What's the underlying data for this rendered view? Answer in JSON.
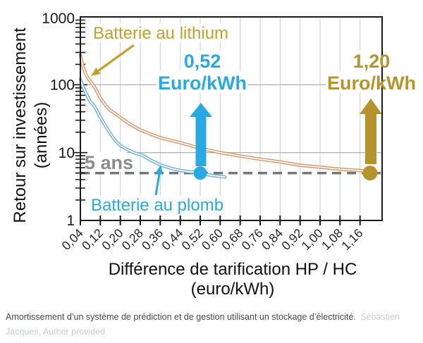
{
  "figure": {
    "y_axis": {
      "title": "Retour sur investissement",
      "unit": "(années)",
      "ticks": [
        "1000",
        "100",
        "10",
        "1"
      ]
    },
    "x_axis": {
      "title": "Différence de tarification HP / HC",
      "unit": "(euro/kWh)",
      "ticks": [
        "0,04",
        "0,12",
        "0,20",
        "0,28",
        "0,36",
        "0,44",
        "0,52",
        "0,60",
        "0,68",
        "0,76",
        "0,84",
        "0,92",
        "1,00",
        "1,08",
        "1,16"
      ]
    },
    "annotations": {
      "lithium_label": "Batterie au lithium",
      "plomb_label": "Batterie au plomb",
      "five_years": "5 ans",
      "blue_value": "0,52",
      "blue_unit": "Euro/kWh",
      "gold_value": "1,20",
      "gold_unit": "Euro/kWh"
    },
    "colors": {
      "blue": "#29A9E1",
      "gold": "#B6932C",
      "goldlight": "#C2A02F",
      "tan": "#D6986B",
      "plomb": "#6FB1D8",
      "graylabel": "#8C8C8C"
    }
  },
  "caption": {
    "text": "Amortissement d’un système de prédiction et de gestion utilisant un stockage d’électricité.",
    "credit": "Sébastien Jacques, Author provided"
  },
  "chart_data": {
    "type": "line",
    "xlabel": "Différence de tarification HP / HC (euro/kWh)",
    "ylabel": "Retour sur investissement (années)",
    "x_range": [
      0.04,
      1.24
    ],
    "y_scale": "log",
    "y_range": [
      1,
      1000
    ],
    "grid": true,
    "x_tick_values": [
      0.04,
      0.12,
      0.2,
      0.28,
      0.36,
      0.44,
      0.52,
      0.6,
      0.68,
      0.76,
      0.84,
      0.92,
      1.0,
      1.08,
      1.16
    ],
    "y_tick_values": [
      1,
      10,
      100,
      1000
    ],
    "series": [
      {
        "name": "Batterie au lithium",
        "color": "#D6986B",
        "points": [
          [
            0.04,
            275
          ],
          [
            0.05,
            190
          ],
          [
            0.06,
            148
          ],
          [
            0.07,
            126
          ],
          [
            0.08,
            112
          ],
          [
            0.09,
            100
          ],
          [
            0.1,
            88
          ],
          [
            0.12,
            64
          ],
          [
            0.14,
            50
          ],
          [
            0.16,
            42
          ],
          [
            0.2,
            33
          ],
          [
            0.24,
            26
          ],
          [
            0.28,
            21.5
          ],
          [
            0.32,
            18.8
          ],
          [
            0.36,
            16.6
          ],
          [
            0.44,
            14
          ],
          [
            0.52,
            11.6
          ],
          [
            0.6,
            10.0
          ],
          [
            0.68,
            8.9
          ],
          [
            0.76,
            8.0
          ],
          [
            0.84,
            7.3
          ],
          [
            0.92,
            6.5
          ],
          [
            1.0,
            6.1
          ],
          [
            1.08,
            5.7
          ],
          [
            1.16,
            5.45
          ],
          [
            1.2,
            5.2
          ]
        ]
      },
      {
        "name": "Batterie au plomb",
        "color": "#6FB1D8",
        "points": [
          [
            0.04,
            120
          ],
          [
            0.05,
            95
          ],
          [
            0.06,
            78
          ],
          [
            0.08,
            56
          ],
          [
            0.095,
            49
          ],
          [
            0.11,
            39
          ],
          [
            0.12,
            33
          ],
          [
            0.14,
            25
          ],
          [
            0.16,
            19
          ],
          [
            0.18,
            15
          ],
          [
            0.2,
            12.6
          ],
          [
            0.23,
            11
          ],
          [
            0.26,
            9.8
          ],
          [
            0.29,
            9.1
          ],
          [
            0.32,
            7.8
          ],
          [
            0.36,
            6.6
          ],
          [
            0.4,
            5.9
          ],
          [
            0.44,
            5.45
          ],
          [
            0.48,
            5.2
          ],
          [
            0.52,
            5.0
          ],
          [
            0.56,
            4.65
          ],
          [
            0.6,
            4.45
          ],
          [
            0.62,
            4.35
          ]
        ]
      }
    ],
    "markers": [
      {
        "x": 0.52,
        "y": 5,
        "color": "#29A9E1",
        "label": "0,52 Euro/kWh"
      },
      {
        "x": 1.2,
        "y": 5,
        "color": "#B6932C",
        "label": "1,20 Euro/kWh"
      }
    ],
    "reference_line": {
      "y": 5,
      "label": "5 ans"
    }
  }
}
